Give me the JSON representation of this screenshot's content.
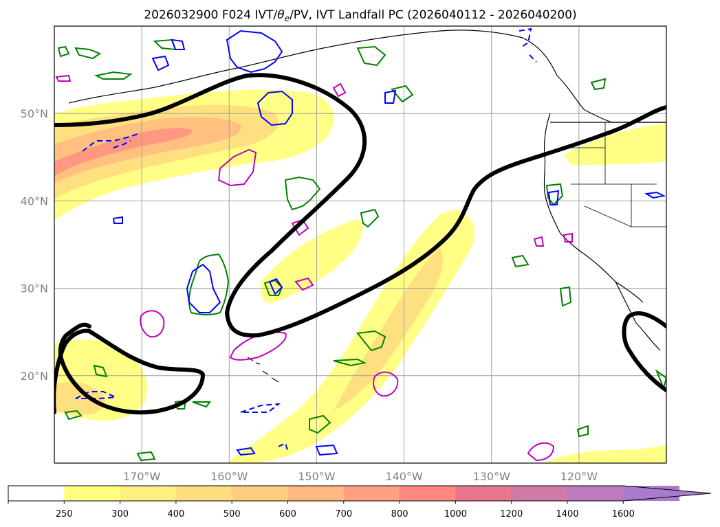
{
  "title": "2026032900 F024 IVT/θ_e/PV, IVT Landfall PC (2026040112 - 2026040200)",
  "title_parts": {
    "prefix": "2026032900 F024 IVT/",
    "theta": "θ",
    "theta_sub": "e",
    "suffix": "/PV, IVT Landfall PC (2026040112 - 2026040200)"
  },
  "map": {
    "lon_range": [
      -180,
      -110
    ],
    "lat_range": [
      10,
      60
    ],
    "lat_ticks": [
      {
        "value": 50,
        "label": "50°N"
      },
      {
        "value": 40,
        "label": "40°N"
      },
      {
        "value": 30,
        "label": "30°N"
      },
      {
        "value": 20,
        "label": "20°N"
      }
    ],
    "lon_ticks": [
      {
        "value": -170,
        "label": "170°W"
      },
      {
        "value": -160,
        "label": "160°W"
      },
      {
        "value": -150,
        "label": "150°W"
      },
      {
        "value": -140,
        "label": "140°W"
      },
      {
        "value": -130,
        "label": "130°W"
      },
      {
        "value": -120,
        "label": "120°W"
      }
    ],
    "grid": true,
    "colors": {
      "theta_e_contour": "#008000",
      "pv_contour": "#0000ff",
      "landfall_pc_contour": "#c000c0",
      "ivt_threshold_contour": "#000000",
      "coastline": "#000000"
    }
  },
  "colorbar": {
    "levels": [
      250,
      300,
      400,
      500,
      600,
      700,
      800,
      1000,
      1200,
      1400,
      1600
    ],
    "labels": [
      "250",
      "300",
      "400",
      "500",
      "600",
      "700",
      "800",
      "1000",
      "1200",
      "1400",
      "1600"
    ],
    "colors": [
      "#ffffff",
      "#ffff80",
      "#ffee80",
      "#ffdd80",
      "#ffcc80",
      "#ffb880",
      "#ffa080",
      "#ff8880",
      "#e87890",
      "#d07aa8",
      "#bc7cbc",
      "#a87ccc"
    ],
    "extend": "max"
  }
}
